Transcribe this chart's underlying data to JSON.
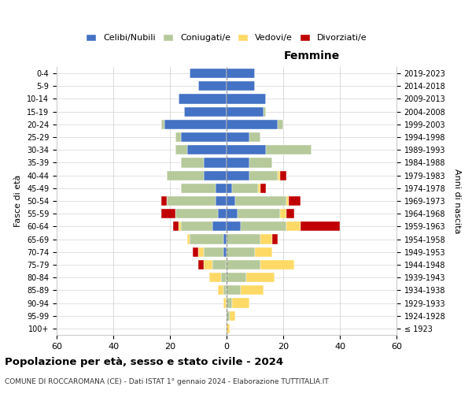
{
  "age_groups": [
    "100+",
    "95-99",
    "90-94",
    "85-89",
    "80-84",
    "75-79",
    "70-74",
    "65-69",
    "60-64",
    "55-59",
    "50-54",
    "45-49",
    "40-44",
    "35-39",
    "30-34",
    "25-29",
    "20-24",
    "15-19",
    "10-14",
    "5-9",
    "0-4"
  ],
  "birth_years": [
    "≤ 1923",
    "1924-1928",
    "1929-1933",
    "1934-1938",
    "1939-1943",
    "1944-1948",
    "1949-1953",
    "1954-1958",
    "1959-1963",
    "1964-1968",
    "1969-1973",
    "1974-1978",
    "1979-1983",
    "1984-1988",
    "1989-1993",
    "1994-1998",
    "1999-2003",
    "2004-2008",
    "2009-2013",
    "2014-2018",
    "2019-2023"
  ],
  "colors": {
    "celibi": "#4472c4",
    "coniugati": "#b5c99a",
    "vedovi": "#ffd966",
    "divorziati": "#c00000"
  },
  "males": {
    "celibi": [
      0,
      0,
      0,
      0,
      0,
      0,
      1,
      1,
      5,
      3,
      4,
      4,
      8,
      8,
      14,
      16,
      22,
      15,
      17,
      10,
      13
    ],
    "coniugati": [
      0,
      0,
      0,
      1,
      2,
      5,
      7,
      12,
      11,
      15,
      17,
      12,
      13,
      8,
      4,
      2,
      1,
      0,
      0,
      0,
      0
    ],
    "vedovi": [
      0,
      0,
      1,
      2,
      4,
      3,
      2,
      1,
      1,
      0,
      0,
      0,
      0,
      0,
      0,
      0,
      0,
      0,
      0,
      0,
      0
    ],
    "divorziati": [
      0,
      0,
      0,
      0,
      0,
      2,
      2,
      0,
      2,
      5,
      2,
      0,
      0,
      0,
      0,
      0,
      0,
      0,
      0,
      0,
      0
    ]
  },
  "females": {
    "celibi": [
      0,
      0,
      0,
      0,
      0,
      0,
      0,
      0,
      5,
      4,
      3,
      2,
      8,
      8,
      14,
      8,
      18,
      13,
      14,
      10,
      10
    ],
    "coniugati": [
      0,
      1,
      2,
      5,
      7,
      12,
      10,
      12,
      16,
      15,
      18,
      9,
      10,
      8,
      16,
      4,
      2,
      1,
      0,
      0,
      0
    ],
    "vedovi": [
      1,
      2,
      6,
      8,
      10,
      12,
      6,
      4,
      5,
      2,
      1,
      1,
      1,
      0,
      0,
      0,
      0,
      0,
      0,
      0,
      0
    ],
    "divorziati": [
      0,
      0,
      0,
      0,
      0,
      0,
      0,
      2,
      14,
      3,
      4,
      2,
      2,
      0,
      0,
      0,
      0,
      0,
      0,
      0,
      0
    ]
  },
  "xlim": 60,
  "title": "Popolazione per età, sesso e stato civile - 2024",
  "subtitle": "COMUNE DI ROCCAROMANA (CE) - Dati ISTAT 1° gennaio 2024 - Elaborazione TUTTITALIA.IT",
  "legend_labels": [
    "Celibi/Nubili",
    "Coniugati/e",
    "Vedovi/e",
    "Divorziati/e"
  ],
  "femmine_label": "Femmine",
  "fascia_eta_label": "Fasce di età",
  "anni_nascita_label": "Anni di nascita"
}
